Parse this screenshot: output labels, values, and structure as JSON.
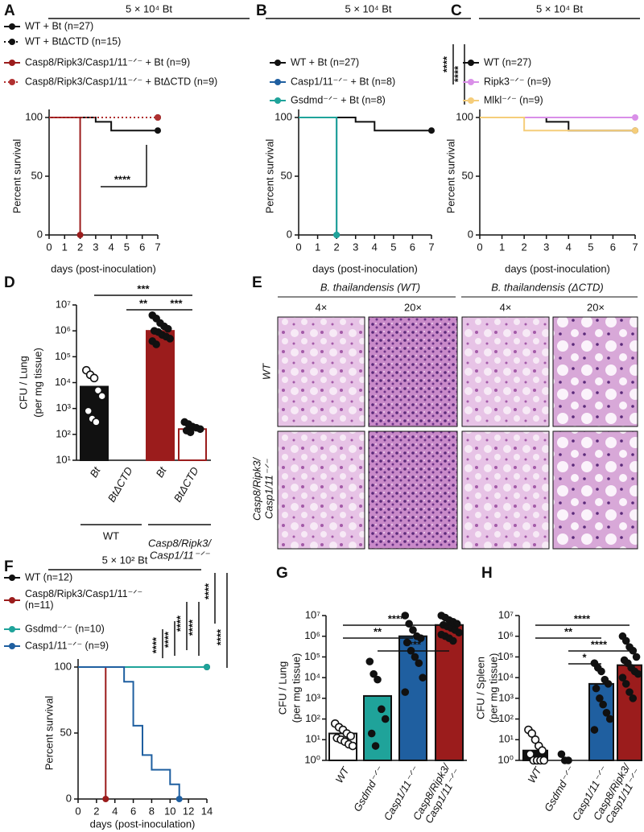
{
  "panel_labels": [
    "A",
    "B",
    "C",
    "D",
    "E",
    "F",
    "G",
    "H"
  ],
  "chart_data": [
    {
      "type": "line",
      "title": "5 × 10⁴ Bt",
      "xlabel": "days (post-inoculation)",
      "ylabel": "Percent survival",
      "xlim": [
        0,
        7
      ],
      "xticks": [
        0,
        1,
        2,
        3,
        4,
        5,
        6,
        7
      ],
      "ylim": [
        0,
        100
      ],
      "yticks": [
        0,
        50,
        100
      ],
      "series": [
        {
          "name": "WT + Bt (n=27)",
          "color": "#111111",
          "line_style": "solid",
          "x": [
            0,
            3,
            3,
            4,
            4,
            7
          ],
          "values": [
            100,
            100,
            96.3,
            96.3,
            88.9,
            88.9
          ]
        },
        {
          "name": "WT + BtΔCTD (n=15)",
          "color": "#111111",
          "line_style": "dotted",
          "x": [
            0,
            7
          ],
          "values": [
            100,
            100
          ]
        },
        {
          "name": "Casp8/Ripk3/Casp1/11⁻ᐟ⁻ + Bt (n=9)",
          "color": "#9b1c1c",
          "line_style": "solid",
          "x": [
            0,
            2,
            2
          ],
          "values": [
            100,
            100,
            0
          ]
        },
        {
          "name": "Casp8/Ripk3/Casp1/11⁻ᐟ⁻ + BtΔCTD (n=9)",
          "color": "#b03030",
          "line_style": "dotted",
          "x": [
            0,
            7
          ],
          "values": [
            100,
            100
          ]
        }
      ],
      "annotations": [
        "****"
      ]
    },
    {
      "type": "line",
      "title": "5 × 10⁴ Bt",
      "xlabel": "days (post-inoculation)",
      "ylabel": "Percent survival",
      "xlim": [
        0,
        7
      ],
      "xticks": [
        0,
        1,
        2,
        3,
        4,
        5,
        6,
        7
      ],
      "ylim": [
        0,
        100
      ],
      "yticks": [
        0,
        50,
        100
      ],
      "series": [
        {
          "name": "WT + Bt (n=27)",
          "color": "#111111",
          "line_style": "solid",
          "x": [
            0,
            3,
            3,
            4,
            4,
            7
          ],
          "values": [
            100,
            100,
            96.3,
            96.3,
            88.9,
            88.9
          ]
        },
        {
          "name": "Casp1/11⁻ᐟ⁻ + Bt (n=8)",
          "color": "#1f5fa0",
          "line_style": "solid",
          "x": [
            0,
            2,
            2
          ],
          "values": [
            100,
            100,
            0
          ]
        },
        {
          "name": "Gsdmd⁻ᐟ⁻ + Bt (n=8)",
          "color": "#1fa39a",
          "line_style": "solid",
          "x": [
            0,
            2,
            2
          ],
          "values": [
            100,
            100,
            0
          ]
        }
      ],
      "annotations": [
        "****",
        "****"
      ]
    },
    {
      "type": "line",
      "title": "5 × 10⁴ Bt",
      "xlabel": "days (post-inoculation)",
      "ylabel": "Percent survival",
      "xlim": [
        0,
        7
      ],
      "xticks": [
        0,
        1,
        2,
        3,
        4,
        5,
        6,
        7
      ],
      "ylim": [
        0,
        100
      ],
      "yticks": [
        0,
        50,
        100
      ],
      "series": [
        {
          "name": "WT (n=27)",
          "color": "#111111",
          "line_style": "solid",
          "x": [
            0,
            3,
            3,
            4,
            4,
            7
          ],
          "values": [
            100,
            100,
            96.3,
            96.3,
            88.9,
            88.9
          ]
        },
        {
          "name": "Ripk3⁻ᐟ⁻ (n=9)",
          "color": "#d98fe8",
          "line_style": "solid",
          "x": [
            0,
            7
          ],
          "values": [
            100,
            100
          ]
        },
        {
          "name": "Mlkl⁻ᐟ⁻ (n=9)",
          "color": "#f5cd7a",
          "line_style": "solid",
          "x": [
            0,
            2,
            2,
            7
          ],
          "values": [
            100,
            100,
            88.9,
            88.9
          ]
        }
      ],
      "annotations": []
    },
    {
      "type": "bar",
      "log_scale": true,
      "ylabel": [
        "CFU / Lung",
        "(per mg tissue)"
      ],
      "categories": [
        "Bt",
        "BtΔCTD",
        "Bt",
        "BtΔCTD"
      ],
      "groups": [
        "WT",
        "Casp8/Ripk3/\nCasp1/11⁻ᐟ⁻"
      ],
      "values": [
        7000,
        null,
        1000000,
        160
      ],
      "colors": [
        "#111111",
        "#ffffff",
        "#9b1c1c",
        "#ffffff"
      ],
      "edge_colors": [
        "#111111",
        "#111111",
        "#9b1c1c",
        "#9b1c1c"
      ],
      "points": [
        [
          30000,
          20000,
          15000,
          5000,
          3000,
          800,
          400,
          300
        ],
        [],
        [
          4000000,
          3000000,
          2000000,
          1500000,
          1200000,
          1000000,
          900000,
          700000,
          600000,
          500000,
          400000,
          300000
        ],
        [
          300,
          250,
          200,
          180,
          160,
          140,
          120
        ]
      ],
      "ylim": [
        10,
        10000000
      ],
      "yticks": [
        {
          "value": 10,
          "label": "10¹"
        },
        {
          "value": 100,
          "label": "10²"
        },
        {
          "value": 1000,
          "label": "10³"
        },
        {
          "value": 10000,
          "label": "10⁴"
        },
        {
          "value": 100000,
          "label": "10⁵"
        },
        {
          "value": 1000000,
          "label": "10⁶"
        },
        {
          "value": 10000000,
          "label": "10⁷"
        }
      ],
      "annotations": [
        "***",
        "**",
        "***"
      ]
    },
    {
      "type": "line",
      "title": "5 × 10² Bt",
      "xlabel": "days (post-inoculation)",
      "ylabel": "Percent survival",
      "xlim": [
        0,
        14
      ],
      "xticks": [
        0,
        2,
        4,
        6,
        8,
        10,
        12,
        14
      ],
      "ylim": [
        0,
        100
      ],
      "yticks": [
        0,
        50,
        100
      ],
      "series": [
        {
          "name": "WT (n=12)",
          "color": "#111111",
          "line_style": "solid",
          "x": [
            0,
            14
          ],
          "values": [
            100,
            100
          ]
        },
        {
          "name": "Casp8/Ripk3/Casp1/11⁻ᐟ⁻\n(n=11)",
          "color": "#9b1c1c",
          "line_style": "solid",
          "x": [
            0,
            3,
            3
          ],
          "values": [
            100,
            100,
            0
          ]
        },
        {
          "name": "Gsdmd⁻ᐟ⁻ (n=10)",
          "color": "#1fa39a",
          "line_style": "solid",
          "x": [
            0,
            14
          ],
          "values": [
            100,
            100
          ]
        },
        {
          "name": "Casp1/11⁻ᐟ⁻ (n=9)",
          "color": "#1f5fa0",
          "line_style": "solid",
          "x": [
            0,
            5,
            5,
            6,
            6,
            7,
            7,
            8,
            8,
            10,
            10,
            11,
            11
          ],
          "values": [
            100,
            100,
            88.9,
            88.9,
            55.6,
            55.6,
            33.3,
            33.3,
            22.2,
            22.2,
            11.1,
            11.1,
            0
          ]
        }
      ],
      "annotations": [
        "****",
        "****",
        "****",
        "****",
        "****",
        "****"
      ]
    },
    {
      "type": "bar",
      "log_scale": true,
      "ylabel": [
        "CFU / Lung",
        "(per mg tissue)"
      ],
      "categories": [
        "WT",
        "Gsdmd⁻ᐟ⁻",
        "Casp1/11⁻ᐟ⁻",
        "Casp8/Ripk3/\nCasp1/11⁻ᐟ⁻"
      ],
      "values": [
        20,
        1300,
        1000000,
        3500000
      ],
      "colors": [
        "#ffffff",
        "#1fa39a",
        "#1f5fa0",
        "#9b1c1c"
      ],
      "edge_colors": [
        "#111111",
        "#111111",
        "#111111",
        "#111111"
      ],
      "points": [
        [
          60,
          40,
          30,
          20,
          15,
          12,
          10,
          8,
          6,
          5
        ],
        [
          60000,
          15000,
          8000,
          300,
          100,
          20,
          5
        ],
        [
          10000000,
          4000000,
          2000000,
          1000000,
          800000,
          500000,
          200000,
          100000,
          50000,
          10000,
          2000
        ],
        [
          10000000,
          8000000,
          6000000,
          5000000,
          4000000,
          3500000,
          3000000,
          2500000,
          2000000,
          1500000,
          1200000,
          1000000,
          800000,
          600000
        ]
      ],
      "ylim": [
        1,
        10000000
      ],
      "yticks": [
        {
          "value": 1,
          "label": "10⁰"
        },
        {
          "value": 10,
          "label": "10¹"
        },
        {
          "value": 100,
          "label": "10²"
        },
        {
          "value": 1000,
          "label": "10³"
        },
        {
          "value": 10000,
          "label": "10⁴"
        },
        {
          "value": 100000,
          "label": "10⁵"
        },
        {
          "value": 1000000,
          "label": "10⁶"
        },
        {
          "value": 10000000,
          "label": "10⁷"
        }
      ],
      "annotations": [
        "****",
        "**",
        "****"
      ]
    },
    {
      "type": "bar",
      "log_scale": true,
      "ylabel": [
        "CFU / Spleen",
        "(per mg tissue)"
      ],
      "categories": [
        "WT",
        "Gsdmd⁻ᐟ⁻",
        "Casp1/11⁻ᐟ⁻",
        "Casp8/Ripk3/\nCasp1/11⁻ᐟ⁻"
      ],
      "values": [
        3,
        null,
        5000,
        40000
      ],
      "colors": [
        "#111111",
        "#ffffff",
        "#1f5fa0",
        "#9b1c1c"
      ],
      "edge_colors": [
        "#111111",
        "#111111",
        "#111111",
        "#111111"
      ],
      "points": [
        [
          30,
          20,
          10,
          5,
          3,
          2,
          1,
          1,
          1,
          1
        ],
        [
          2,
          1,
          1
        ],
        [
          50000,
          30000,
          20000,
          8000,
          5000,
          3000,
          1000,
          500,
          200,
          100,
          30
        ],
        [
          1000000,
          600000,
          300000,
          200000,
          100000,
          70000,
          50000,
          30000,
          20000,
          15000,
          10000,
          5000,
          2000,
          1000
        ]
      ],
      "ylim": [
        1,
        10000000
      ],
      "yticks": [
        {
          "value": 1,
          "label": "10⁰"
        },
        {
          "value": 10,
          "label": "10¹"
        },
        {
          "value": 100,
          "label": "10²"
        },
        {
          "value": 1000,
          "label": "10³"
        },
        {
          "value": 10000,
          "label": "10⁴"
        },
        {
          "value": 100000,
          "label": "10⁵"
        },
        {
          "value": 1000000,
          "label": "10⁶"
        },
        {
          "value": 10000000,
          "label": "10⁷"
        }
      ],
      "annotations": [
        "****",
        "**",
        "****",
        "*"
      ]
    }
  ],
  "histology": {
    "title_left": "B. thailandensis (WT)",
    "title_right": "B. thailandensis (ΔCTD)",
    "magnifications": [
      "4×",
      "20×",
      "4×",
      "20×"
    ],
    "rows": [
      "WT",
      "Casp8/Ripk3/\nCasp1/11⁻ᐟ⁻"
    ]
  }
}
